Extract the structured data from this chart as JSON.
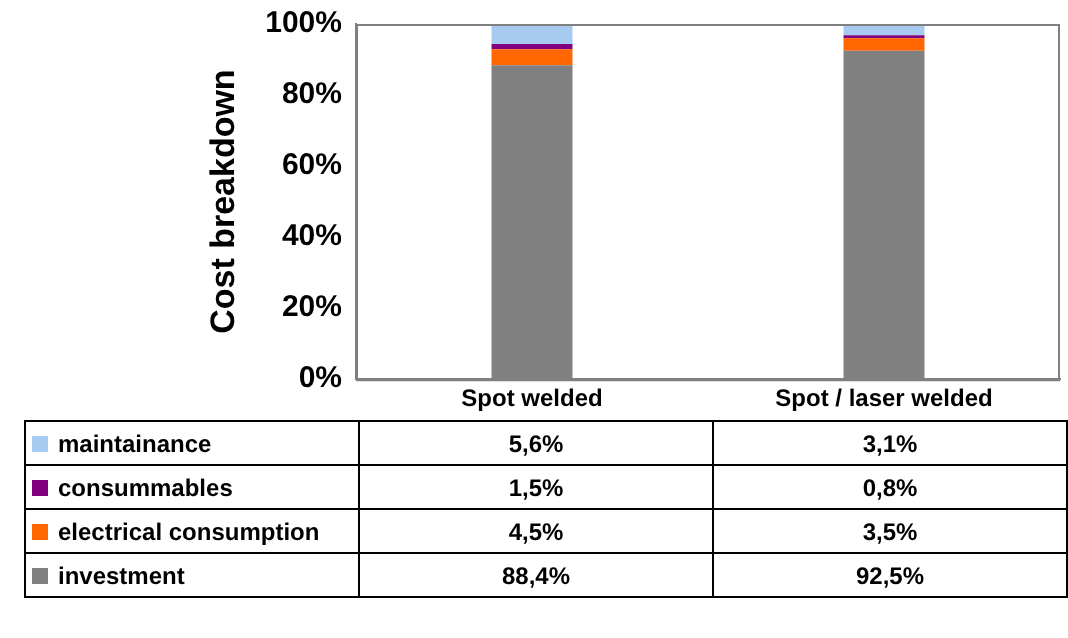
{
  "chart_data": {
    "type": "bar",
    "stacked": true,
    "ylabel": "Cost breakdown",
    "categories": [
      "Spot welded",
      "Spot / laser welded"
    ],
    "ylim": [
      0,
      100
    ],
    "yticks": [
      {
        "value": 0,
        "label": "0%"
      },
      {
        "value": 20,
        "label": "20%"
      },
      {
        "value": 40,
        "label": "40%"
      },
      {
        "value": 60,
        "label": "60%"
      },
      {
        "value": 80,
        "label": "80%"
      },
      {
        "value": 100,
        "label": "100%"
      }
    ],
    "grid": false,
    "legend": "bottom",
    "series": [
      {
        "name": "investment",
        "color": "#808080",
        "values": [
          88.4,
          92.5
        ],
        "value_labels": [
          "88,4%",
          "92,5%"
        ]
      },
      {
        "name": "electrical consumption",
        "color": "#ff6600",
        "values": [
          4.5,
          3.5
        ],
        "value_labels": [
          "4,5%",
          "3,5%"
        ]
      },
      {
        "name": "consummables",
        "color": "#800080",
        "values": [
          1.5,
          0.8
        ],
        "value_labels": [
          "1,5%",
          "0,8%"
        ]
      },
      {
        "name": "maintainance",
        "color": "#a6caf0",
        "values": [
          5.6,
          3.1
        ],
        "value_labels": [
          "5,6%",
          "3,1%"
        ]
      }
    ]
  }
}
